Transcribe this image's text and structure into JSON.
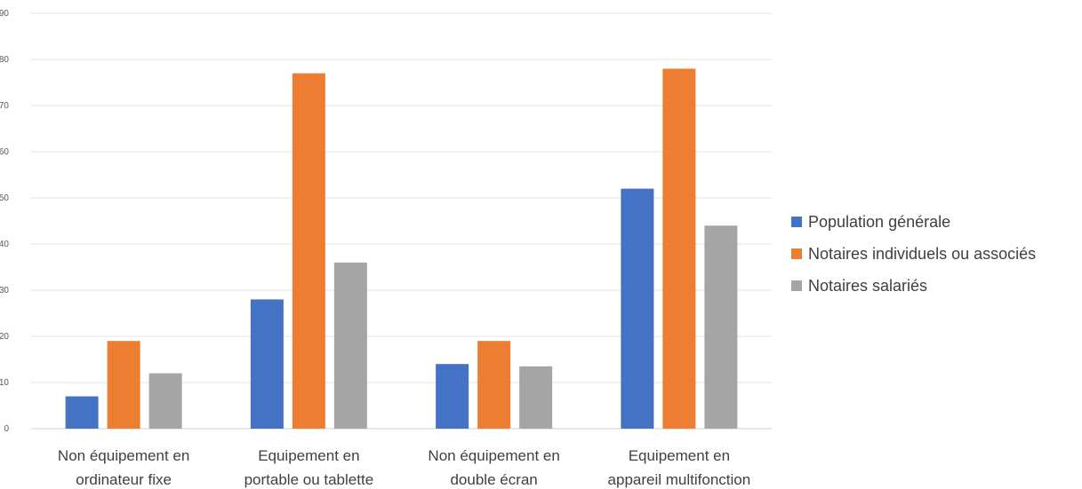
{
  "chart_data": {
    "type": "bar",
    "ylim": [
      0,
      90
    ],
    "yticks": [
      0,
      10,
      20,
      30,
      40,
      50,
      60,
      70,
      80,
      90
    ],
    "grid": true,
    "legend_position": "right",
    "categories": [
      [
        "Non équipement en",
        "ordinateur fixe"
      ],
      [
        "Equipement en",
        "portable ou tablette"
      ],
      [
        "Non équipement en",
        "double écran"
      ],
      [
        "Equipement en",
        "appareil multifonction"
      ]
    ],
    "series": [
      {
        "name": "Population générale",
        "color": "#4472C4",
        "values": [
          7,
          28,
          14,
          52
        ]
      },
      {
        "name": "Notaires individuels ou associés",
        "color": "#ED7D31",
        "values": [
          19,
          77,
          19,
          78
        ]
      },
      {
        "name": "Notaires salariés",
        "color": "#A5A5A5",
        "values": [
          12,
          36,
          13.5,
          44
        ]
      }
    ]
  }
}
